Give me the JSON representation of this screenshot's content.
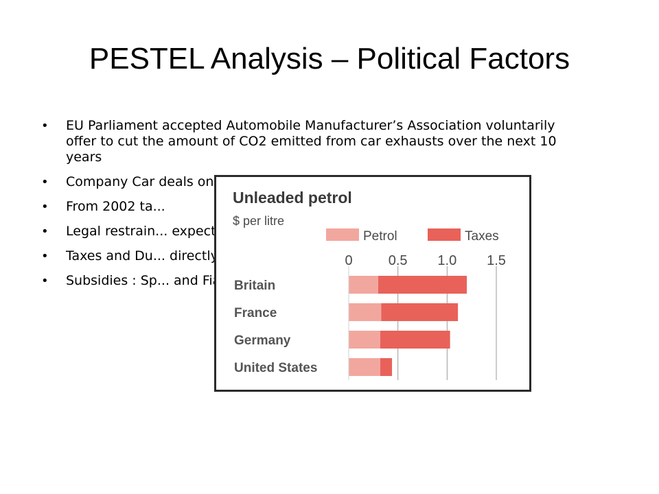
{
  "slide": {
    "title": "PESTEL Analysis – Political Factors",
    "bullets": [
      "EU Parliament accepted Automobile Manufacturer’s Association voluntarily offer to cut the amount of CO2 emitted from car exhausts over the next 10 years",
      "Company Car deals on lease taking payme... car.",
      "From 2002 ta...",
      "Legal restrain... expected to d...",
      "Taxes and Du... directly linked...",
      "Subsidies : Sp... and Fiat"
    ]
  },
  "chart_data": {
    "type": "bar",
    "title": "Unleaded petrol",
    "subtitle": "$ per litre",
    "categories": [
      "Britain",
      "France",
      "Germany",
      "United States"
    ],
    "series": [
      {
        "name": "Petrol",
        "values": [
          0.3,
          0.33,
          0.32,
          0.32
        ],
        "color": "#f2a79e"
      },
      {
        "name": "Taxes",
        "values": [
          0.9,
          0.78,
          0.71,
          0.12
        ],
        "color": "#e8625a"
      }
    ],
    "xlim": [
      0,
      1.5
    ],
    "xticks": [
      "0",
      "0.5",
      "1.0",
      "1.5"
    ],
    "stacked": true,
    "orientation": "horizontal",
    "grid": true,
    "legend_position": "top"
  }
}
